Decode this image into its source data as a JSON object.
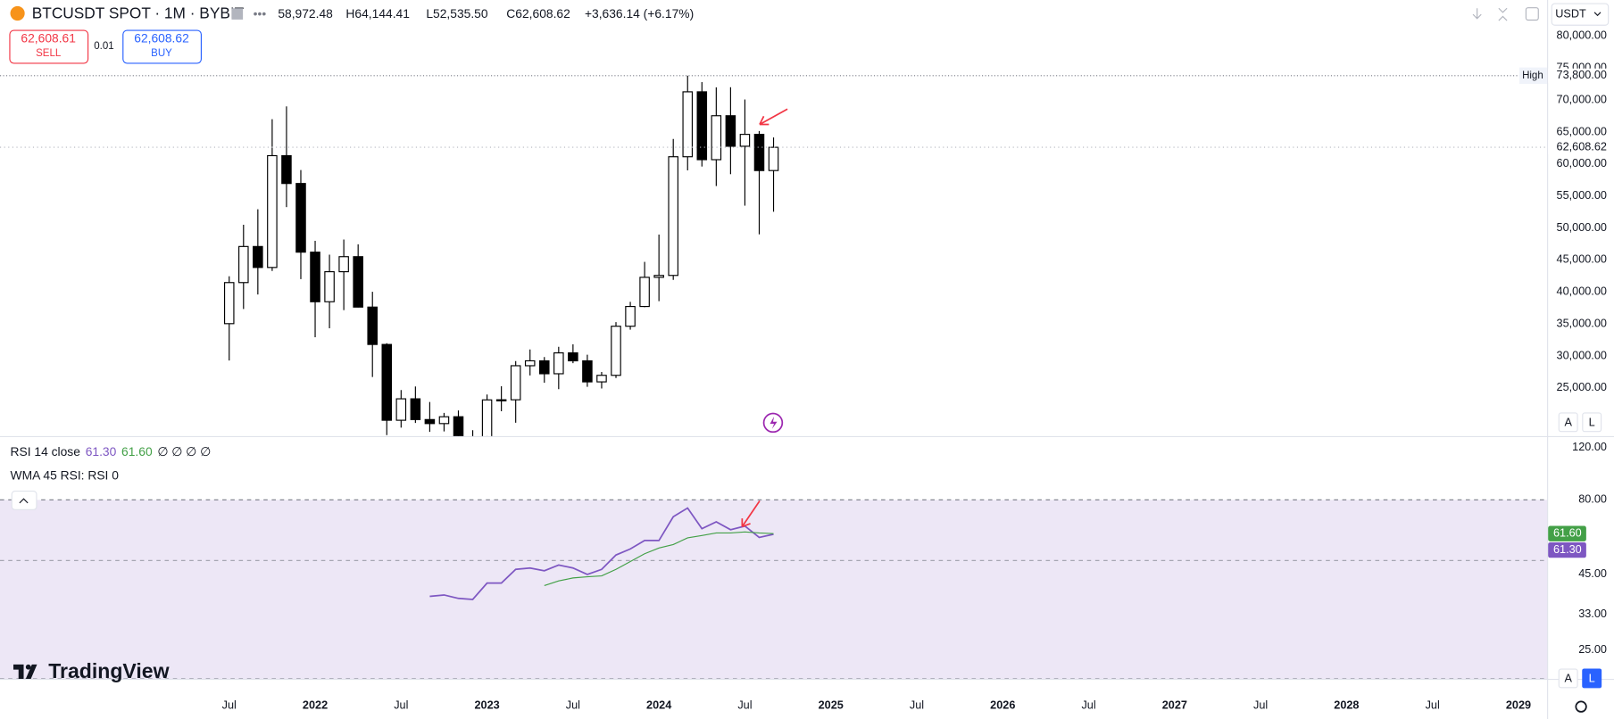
{
  "ui": {
    "symbol": "BTCUSDT SPOT · 1M · BYBIT",
    "ohlc": [
      "58,972.48",
      "H64,144.41",
      "L52,535.50",
      "C62,608.62",
      "+3,636.14 (+6.17%)"
    ],
    "sell_price": "62,608.61",
    "sell": "SELL",
    "spread": "0.01",
    "buy_price": "62,608.62",
    "buy": "BUY",
    "currency": "USDT",
    "logo": "TradingView",
    "scale_buttons": [
      "A",
      "L"
    ]
  },
  "chart_data": [
    {
      "type": "candlestick",
      "x": [
        "2021-07",
        "2021-08",
        "2021-09",
        "2021-10",
        "2021-11",
        "2021-12",
        "2022-01",
        "2022-02",
        "2022-03",
        "2022-04",
        "2022-05",
        "2022-06",
        "2022-07",
        "2022-08",
        "2022-09",
        "2022-10",
        "2022-11",
        "2022-12",
        "2023-01",
        "2023-02",
        "2023-03",
        "2023-04",
        "2023-05",
        "2023-06",
        "2023-07",
        "2023-08",
        "2023-09",
        "2023-10",
        "2023-11",
        "2023-12",
        "2024-01",
        "2024-02",
        "2024-03",
        "2024-04",
        "2024-05",
        "2024-06",
        "2024-07",
        "2024-08",
        "2024-09"
      ],
      "open": [
        35040,
        41461,
        47100,
        43824,
        61300,
        56950,
        46217,
        38466,
        43160,
        45510,
        37630,
        31790,
        19942,
        23293,
        20050,
        19423,
        20491,
        17164,
        16542,
        23125,
        23142,
        28465,
        29233,
        27210,
        30472,
        29232,
        25941,
        26963,
        34639,
        37724,
        42283,
        42580,
        61130,
        71280,
        60672,
        67540,
        62772,
        64628,
        58972.48
      ],
      "high": [
        42448,
        50500,
        52920,
        67000,
        69000,
        59053,
        47990,
        45821,
        48190,
        47444,
        40023,
        31986,
        24668,
        25212,
        22799,
        21085,
        21480,
        18387,
        23960,
        25250,
        29190,
        31000,
        29820,
        31431,
        31804,
        30190,
        27483,
        35280,
        38450,
        44700,
        48969,
        63913,
        73800,
        72797,
        71979,
        71997,
        70079,
        65150,
        64144.41
      ],
      "low": [
        29278,
        37332,
        39600,
        43283,
        53256,
        42000,
        32917,
        34322,
        37155,
        37578,
        26700,
        17622,
        18781,
        19520,
        18125,
        18190,
        15476,
        16256,
        16499,
        21351,
        19549,
        26942,
        25811,
        24800,
        28861,
        25166,
        24901,
        26538,
        34097,
        37615,
        38555,
        41884,
        59005,
        59600,
        56552,
        58402,
        53485,
        49000,
        52535.5
      ],
      "close": [
        41461,
        47100,
        43824,
        61300,
        56950,
        46217,
        38466,
        43160,
        45510,
        37630,
        31790,
        19942,
        23293,
        20050,
        19423,
        20491,
        17164,
        16542,
        23125,
        23142,
        28465,
        29233,
        27210,
        30472,
        29232,
        25941,
        26963,
        34639,
        37724,
        42283,
        42580,
        61130,
        71280,
        60672,
        67540,
        62772,
        64628,
        58972,
        62608.62
      ],
      "up_color": "#ffffff",
      "down_color": "#000000",
      "edge_color": "#000000",
      "xlim": [
        "2020-03",
        "2029-03"
      ],
      "ylim": [
        17460,
        85630
      ],
      "yticks": [
        {
          "value": 80000,
          "label": "80,000.00"
        },
        {
          "value": 75000,
          "label": "75,000.00"
        },
        {
          "value": 70000,
          "label": "70,000.00"
        },
        {
          "value": 65000,
          "label": "65,000.00"
        },
        {
          "value": 60000,
          "label": "60,000.00"
        },
        {
          "value": 55000,
          "label": "55,000.00"
        },
        {
          "value": 50000,
          "label": "50,000.00"
        },
        {
          "value": 45000,
          "label": "45,000.00"
        },
        {
          "value": 40000,
          "label": "40,000.00"
        },
        {
          "value": 35000,
          "label": "35,000.00"
        },
        {
          "value": 30000,
          "label": "30,000.00"
        },
        {
          "value": 25000,
          "label": "25,000.00"
        }
      ],
      "high_line": {
        "name": "High",
        "value": 73800,
        "label": "73,800.00"
      },
      "last_price": {
        "value": 62608.62,
        "label": "62,608.62"
      },
      "grid": false
    },
    {
      "type": "line",
      "x": [
        "2021-07",
        "2021-08",
        "2021-09",
        "2021-10",
        "2021-11",
        "2021-12",
        "2022-01",
        "2022-02",
        "2022-03",
        "2022-04",
        "2022-05",
        "2022-06",
        "2022-07",
        "2022-08",
        "2022-09",
        "2022-10",
        "2022-11",
        "2022-12",
        "2023-01",
        "2023-02",
        "2023-03",
        "2023-04",
        "2023-05",
        "2023-06",
        "2023-07",
        "2023-08",
        "2023-09",
        "2023-10",
        "2023-11",
        "2023-12",
        "2024-01",
        "2024-02",
        "2024-03",
        "2024-04",
        "2024-05",
        "2024-06",
        "2024-07",
        "2024-08",
        "2024-09"
      ],
      "series": [
        {
          "name": "RSI 14 close",
          "color": "#7e57c2",
          "last_label": "61.30",
          "values": [
            null,
            null,
            null,
            null,
            null,
            null,
            null,
            null,
            null,
            null,
            null,
            null,
            null,
            null,
            37.9,
            38.3,
            37.3,
            37.0,
            42.0,
            42.0,
            46.7,
            47.2,
            46.2,
            48.3,
            47.2,
            44.9,
            46.7,
            52.2,
            54.7,
            58.4,
            58.4,
            70.2,
            75.1,
            64.0,
            67.5,
            63.5,
            65.3,
            59.8,
            61.3
          ]
        },
        {
          "name": "WMA 45 RSI: RSI 0",
          "color": "#43a047",
          "last_label": "61.60",
          "values": [
            null,
            null,
            null,
            null,
            null,
            null,
            null,
            null,
            null,
            null,
            null,
            null,
            null,
            null,
            null,
            null,
            null,
            null,
            null,
            null,
            null,
            null,
            41.2,
            42.7,
            43.7,
            44.1,
            44.4,
            46.7,
            49.6,
            52.7,
            55.1,
            56.6,
            59.6,
            60.7,
            61.9,
            61.9,
            62.4,
            61.9,
            61.6
          ]
        }
      ],
      "legend_extra": "∅ ∅ ∅ ∅",
      "log_scale": true,
      "xlim": [
        "2020-03",
        "2029-03"
      ],
      "ylim": [
        20,
        130
      ],
      "yticks": [
        {
          "value": 120,
          "label": "120.00"
        },
        {
          "value": 80,
          "label": "80.00"
        },
        {
          "value": 45,
          "label": "45.00"
        },
        {
          "value": 33,
          "label": "33.00"
        },
        {
          "value": 25,
          "label": "25.00"
        }
      ],
      "band": [
        20,
        80
      ],
      "middle_line": 50,
      "band_color": "#ede7f6",
      "xticks": [
        {
          "value": "2021-07",
          "label": "Jul"
        },
        {
          "value": "2022-01",
          "label": "2022"
        },
        {
          "value": "2022-07",
          "label": "Jul"
        },
        {
          "value": "2023-01",
          "label": "2023"
        },
        {
          "value": "2023-07",
          "label": "Jul"
        },
        {
          "value": "2024-01",
          "label": "2024"
        },
        {
          "value": "2024-07",
          "label": "Jul"
        },
        {
          "value": "2025-01",
          "label": "2025"
        },
        {
          "value": "2025-07",
          "label": "Jul"
        },
        {
          "value": "2026-01",
          "label": "2026"
        },
        {
          "value": "2026-07",
          "label": "Jul"
        },
        {
          "value": "2027-01",
          "label": "2027"
        },
        {
          "value": "2027-07",
          "label": "Jul"
        },
        {
          "value": "2028-01",
          "label": "2028"
        },
        {
          "value": "2028-07",
          "label": "Jul"
        },
        {
          "value": "2029-01",
          "label": "2029"
        }
      ]
    }
  ]
}
